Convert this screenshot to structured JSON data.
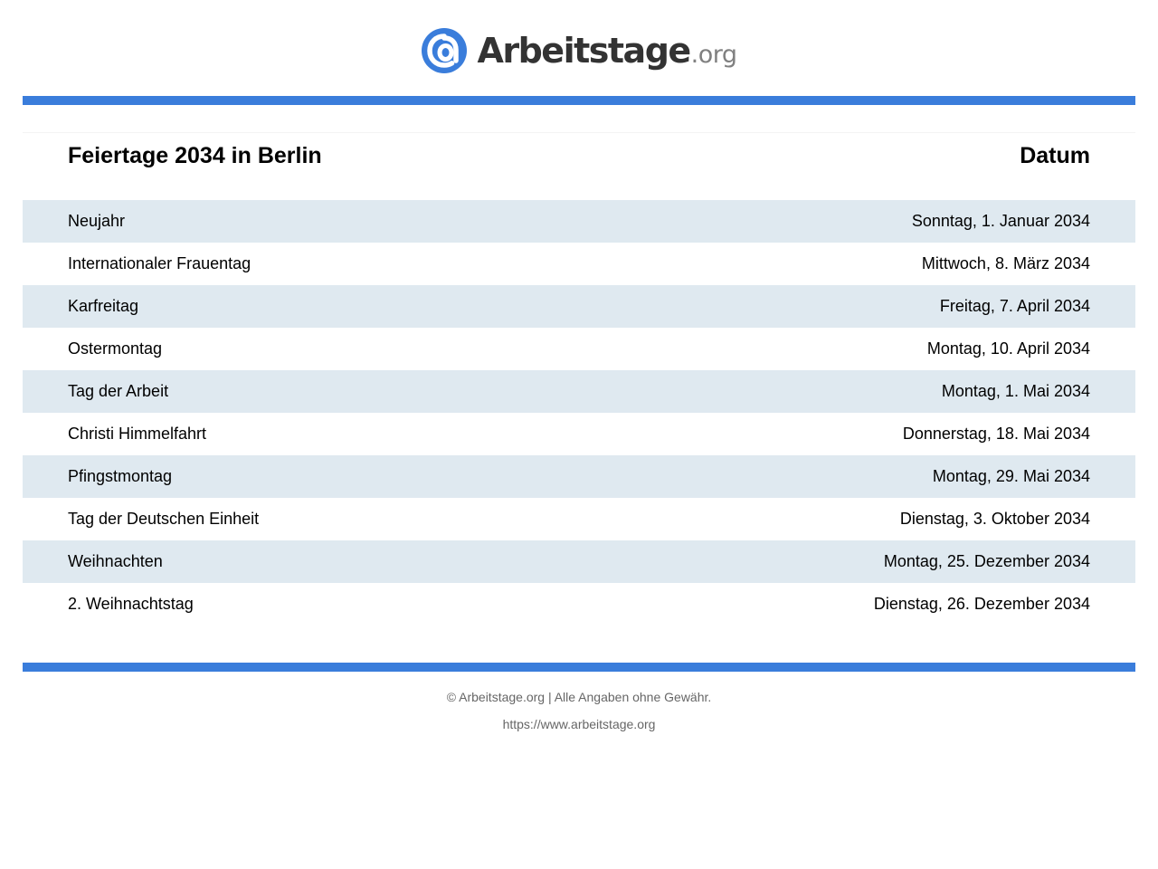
{
  "colors": {
    "accent": "#3a7ddb",
    "row_alt": "#dfe9f0",
    "footer_text": "#666666"
  },
  "logo": {
    "icon": "at-sign-logo-icon",
    "name": "Arbeitstage",
    "tld": ".org"
  },
  "table": {
    "header": {
      "title": "Feiertage 2034 in Berlin",
      "date": "Datum"
    },
    "rows": [
      {
        "name": "Neujahr",
        "date": "Sonntag, 1. Januar 2034"
      },
      {
        "name": "Internationaler Frauentag",
        "date": "Mittwoch, 8. März 2034"
      },
      {
        "name": "Karfreitag",
        "date": "Freitag, 7. April 2034"
      },
      {
        "name": "Ostermontag",
        "date": "Montag, 10. April 2034"
      },
      {
        "name": "Tag der Arbeit",
        "date": "Montag, 1. Mai 2034"
      },
      {
        "name": "Christi Himmelfahrt",
        "date": "Donnerstag, 18. Mai 2034"
      },
      {
        "name": "Pfingstmontag",
        "date": "Montag, 29. Mai 2034"
      },
      {
        "name": "Tag der Deutschen Einheit",
        "date": "Dienstag, 3. Oktober 2034"
      },
      {
        "name": "Weihnachten",
        "date": "Montag, 25. Dezember 2034"
      },
      {
        "name": "2. Weihnachtstag",
        "date": "Dienstag, 26. Dezember 2034"
      }
    ]
  },
  "footer": {
    "copyright": "© Arbeitstage.org | Alle Angaben ohne Gewähr.",
    "url": "https://www.arbeitstage.org"
  }
}
